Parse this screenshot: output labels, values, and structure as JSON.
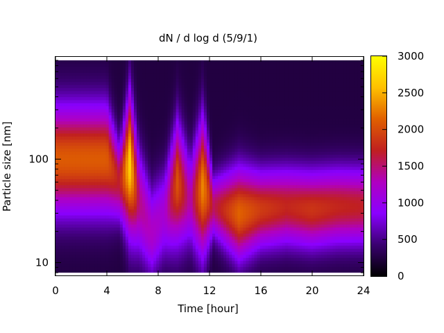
{
  "chart_data": {
    "type": "heatmap",
    "title": "dN / d log d (5/9/1)",
    "xlabel": "Time [hour]",
    "ylabel": "Particle size [nm]",
    "xlim": [
      0,
      24
    ],
    "xticks": [
      0,
      4,
      8,
      12,
      16,
      20,
      24
    ],
    "ylim_nm": [
      8,
      900
    ],
    "yscale": "log",
    "yticks": [
      10,
      100
    ],
    "colorbar": {
      "range": [
        0,
        3000
      ],
      "ticks": [
        0,
        500,
        1000,
        1500,
        2000,
        2500,
        3000
      ],
      "palette": [
        "#000000",
        "#3a0070",
        "#8a00ff",
        "#b000c0",
        "#c02020",
        "#e06000",
        "#ffc000",
        "#ffff00"
      ]
    },
    "profiles": [
      {
        "time_h": 0.0,
        "center_nm": 100,
        "width_log": 0.35,
        "peak": 1850
      },
      {
        "time_h": 4.0,
        "center_nm": 100,
        "width_log": 0.35,
        "peak": 1850
      },
      {
        "time_h": 5.0,
        "center_nm": 60,
        "width_log": 0.25,
        "peak": 1400
      },
      {
        "time_h": 5.8,
        "center_nm": 90,
        "width_log": 0.45,
        "peak": 2450
      },
      {
        "time_h": 6.5,
        "center_nm": 40,
        "width_log": 0.35,
        "peak": 1200
      },
      {
        "time_h": 7.5,
        "center_nm": 20,
        "width_log": 0.3,
        "peak": 1000
      },
      {
        "time_h": 8.5,
        "center_nm": 30,
        "width_log": 0.3,
        "peak": 900
      },
      {
        "time_h": 9.5,
        "center_nm": 60,
        "width_log": 0.4,
        "peak": 1800
      },
      {
        "time_h": 10.5,
        "center_nm": 40,
        "width_log": 0.3,
        "peak": 1050
      },
      {
        "time_h": 11.5,
        "center_nm": 55,
        "width_log": 0.45,
        "peak": 2100
      },
      {
        "time_h": 12.3,
        "center_nm": 35,
        "width_log": 0.2,
        "peak": 1300
      },
      {
        "time_h": 14.3,
        "center_nm": 30,
        "width_log": 0.3,
        "peak": 1900
      },
      {
        "time_h": 16.0,
        "center_nm": 33,
        "width_log": 0.25,
        "peak": 1650
      },
      {
        "time_h": 18.0,
        "center_nm": 35,
        "width_log": 0.25,
        "peak": 1500
      },
      {
        "time_h": 20.0,
        "center_nm": 33,
        "width_log": 0.25,
        "peak": 1600
      },
      {
        "time_h": 22.0,
        "center_nm": 35,
        "width_log": 0.25,
        "peak": 1500
      },
      {
        "time_h": 24.0,
        "center_nm": 35,
        "width_log": 0.25,
        "peak": 1450
      }
    ]
  }
}
